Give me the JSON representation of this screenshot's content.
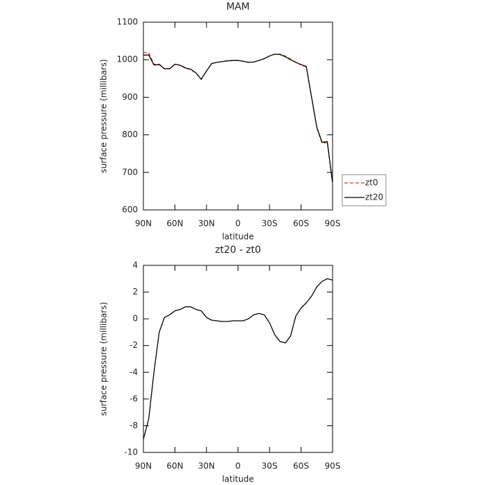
{
  "chart_data": [
    {
      "type": "line",
      "title": "MAM",
      "x_label": "latitude",
      "y_label": "surface pressure (millibars)",
      "x": [
        90,
        85,
        80,
        75,
        70,
        65,
        60,
        55,
        50,
        45,
        40,
        35,
        30,
        25,
        20,
        15,
        10,
        5,
        0,
        -5,
        -10,
        -15,
        -20,
        -25,
        -30,
        -35,
        -40,
        -45,
        -50,
        -55,
        -60,
        -65,
        -70,
        -75,
        -80,
        -85,
        -90
      ],
      "series": [
        {
          "name": "zt0",
          "color": "#e8321e",
          "dash": "dashed",
          "values": [
            1019,
            1019,
            988,
            988,
            976,
            976,
            988,
            985,
            977,
            974,
            964,
            948,
            970,
            990,
            993,
            995,
            997,
            998,
            998,
            996,
            993,
            994,
            998,
            1003,
            1010,
            1015,
            1015,
            1010,
            1002,
            993,
            986,
            981,
            899,
            818,
            778,
            779,
            670
          ]
        },
        {
          "name": "zt20",
          "color": "#000000",
          "dash": "solid",
          "values": [
            1012,
            1013,
            986,
            987,
            976,
            976,
            988,
            985,
            978,
            975,
            965,
            948,
            970,
            990,
            993,
            995,
            997,
            998,
            998,
            996,
            993,
            994,
            998,
            1003,
            1010,
            1015,
            1014,
            1008,
            1000,
            993,
            987,
            982,
            900,
            820,
            780,
            782,
            672
          ]
        }
      ],
      "xlim": [
        90,
        -90
      ],
      "xticks": [
        {
          "value": 90,
          "label": "90N"
        },
        {
          "value": 60,
          "label": "60N"
        },
        {
          "value": 30,
          "label": "30N"
        },
        0,
        {
          "value": -30,
          "label": "30S"
        },
        {
          "value": -60,
          "label": "60S"
        },
        {
          "value": -90,
          "label": "90S"
        }
      ],
      "ylim": [
        600,
        1100
      ],
      "yticks": [
        600,
        700,
        800,
        900,
        1000,
        1100
      ],
      "legend": "right"
    },
    {
      "type": "line",
      "title": "zt20 - zt0",
      "x_label": "latitude",
      "y_label": "surface pressure (millibars)",
      "x": [
        90,
        85,
        80,
        75,
        70,
        65,
        60,
        55,
        50,
        45,
        40,
        35,
        30,
        25,
        20,
        15,
        10,
        5,
        0,
        -5,
        -10,
        -15,
        -20,
        -25,
        -30,
        -35,
        -40,
        -45,
        -50,
        -55,
        -60,
        -65,
        -70,
        -75,
        -80,
        -85,
        -90
      ],
      "values": [
        -9,
        -7.5,
        -4,
        -1,
        0.1,
        0.3,
        0.6,
        0.7,
        0.9,
        0.9,
        0.7,
        0.6,
        0.1,
        -0.1,
        -0.15,
        -0.2,
        -0.2,
        -0.15,
        -0.15,
        -0.15,
        0,
        0.3,
        0.4,
        0.3,
        -0.3,
        -1.2,
        -1.7,
        -1.8,
        -1.3,
        0.2,
        0.8,
        1.2,
        1.7,
        2.4,
        2.8,
        3.0,
        2.9
      ],
      "color": "#000000",
      "xlim": [
        90,
        -90
      ],
      "xticks": [
        {
          "value": 90,
          "label": "90N"
        },
        {
          "value": 60,
          "label": "60N"
        },
        {
          "value": 30,
          "label": "30N"
        },
        0,
        {
          "value": -30,
          "label": "30S"
        },
        {
          "value": -60,
          "label": "60S"
        },
        {
          "value": -90,
          "label": "90S"
        }
      ],
      "ylim": [
        -10,
        4
      ],
      "yticks": [
        -10,
        -8,
        -6,
        -4,
        -2,
        0,
        2,
        4
      ]
    }
  ]
}
